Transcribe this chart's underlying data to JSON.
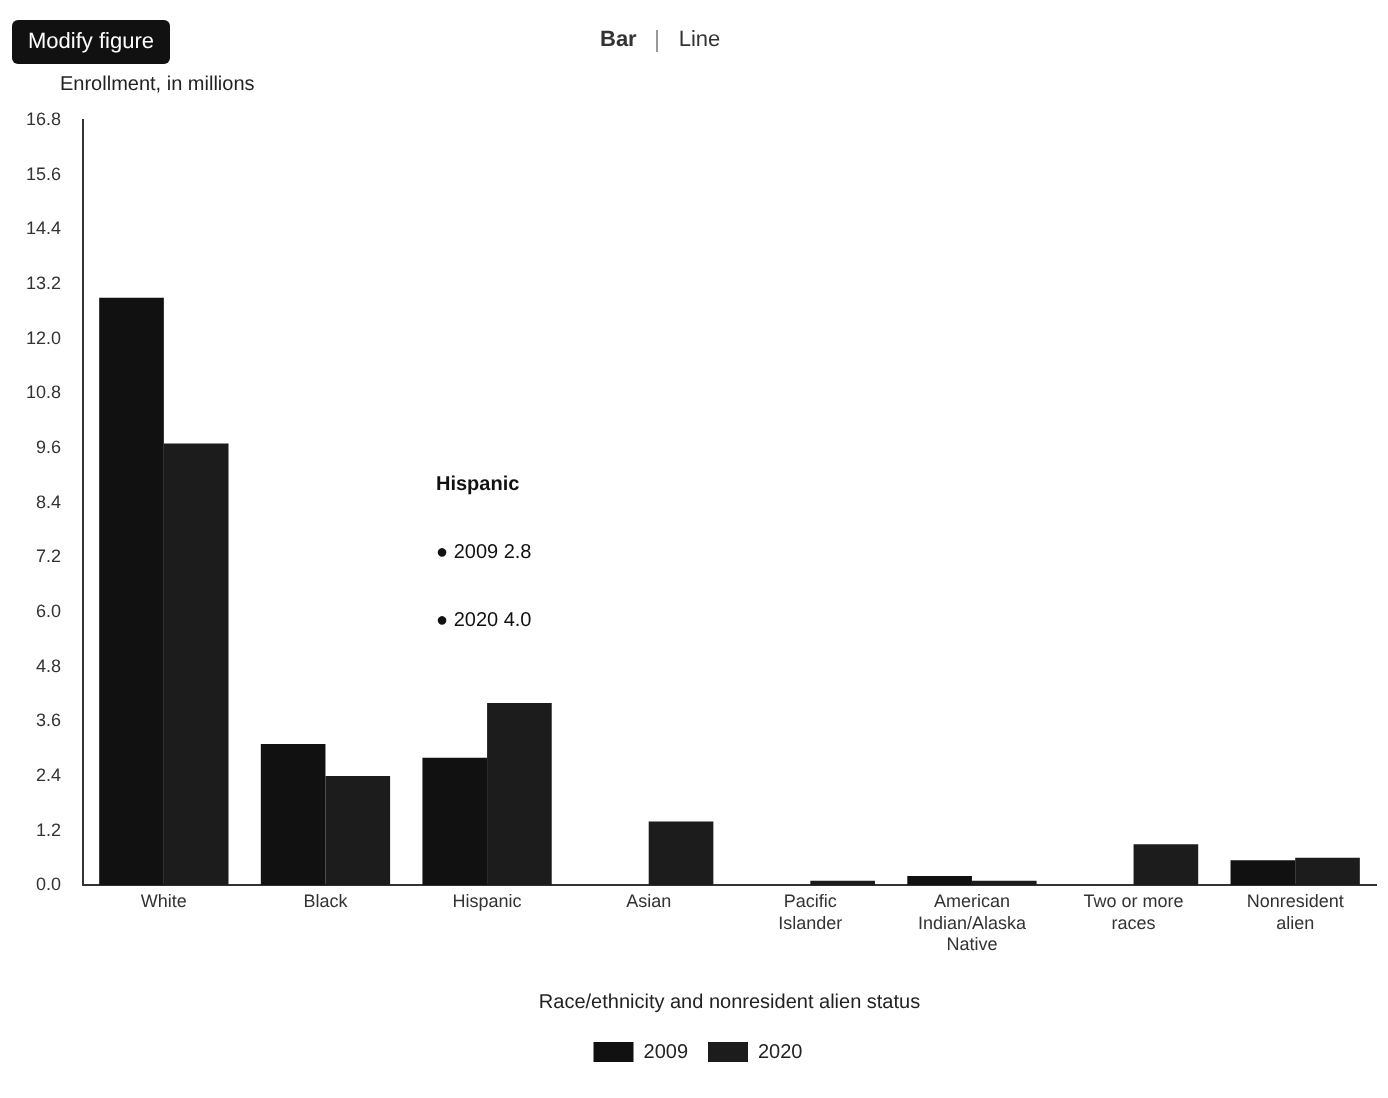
{
  "chart_data": {
    "type": "bar",
    "ylabel": "Enrollment, in millions",
    "xlabel": "Race/ethnicity and nonresident alien status",
    "categories": [
      "White",
      "Black",
      "Hispanic",
      "Asian",
      "Pacific Islander",
      "American Indian/Alaska Native",
      "Two or more races",
      "Nonresident alien"
    ],
    "series": [
      {
        "name": "2009",
        "color": "#111111",
        "values": [
          12.9,
          3.1,
          2.8,
          null,
          null,
          0.2,
          null,
          0.55
        ]
      },
      {
        "name": "2020",
        "color": "#1c1c1c",
        "values": [
          9.7,
          2.4,
          4.0,
          1.4,
          0.1,
          0.1,
          0.9,
          0.6
        ]
      }
    ],
    "ylim": [
      0,
      16.8
    ],
    "yticks": [
      {
        "value": 0,
        "label": "0.0"
      },
      1.2,
      2.4,
      3.6,
      4.8,
      {
        "value": 6,
        "label": "6.0"
      },
      7.2,
      8.4,
      9.6,
      10.8,
      {
        "value": 12,
        "label": "12.0"
      },
      13.2,
      14.4,
      15.6,
      16.8
    ],
    "grid": false,
    "legend": "bottom",
    "annotations": [
      "Modify figure",
      "Bar",
      "Line",
      "Hispanic",
      "● 2009  2.8",
      "● 2020  4.0"
    ]
  }
}
